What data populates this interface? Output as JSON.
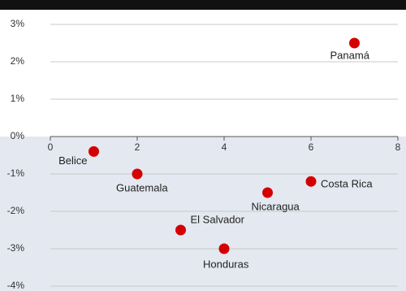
{
  "chart_data": {
    "type": "scatter",
    "color": "#d40000",
    "labels": [
      "Belice",
      "Guatemala",
      "El Salvador",
      "Honduras",
      "Nicaragua",
      "Costa Rica",
      "Panamá"
    ],
    "x": [
      1,
      2,
      3,
      4,
      5,
      6,
      7
    ],
    "values": [
      -0.4,
      -1,
      -2.5,
      -3,
      -1.5,
      -1.2,
      2.5
    ],
    "xlim": [
      0,
      8
    ],
    "xticks": [
      0,
      2,
      4,
      6,
      8
    ],
    "ylim": [
      -4,
      3
    ],
    "yticks": [
      {
        "value": 3,
        "label": "3%"
      },
      {
        "value": 2,
        "label": "2%"
      },
      {
        "value": 1,
        "label": "1%"
      },
      {
        "value": 0,
        "label": "0%"
      },
      {
        "value": -1,
        "label": "-1%"
      },
      {
        "value": -2,
        "label": "-2%"
      },
      {
        "value": -3,
        "label": "-3%"
      },
      {
        "value": -4,
        "label": "-4%"
      }
    ],
    "grid": true
  }
}
